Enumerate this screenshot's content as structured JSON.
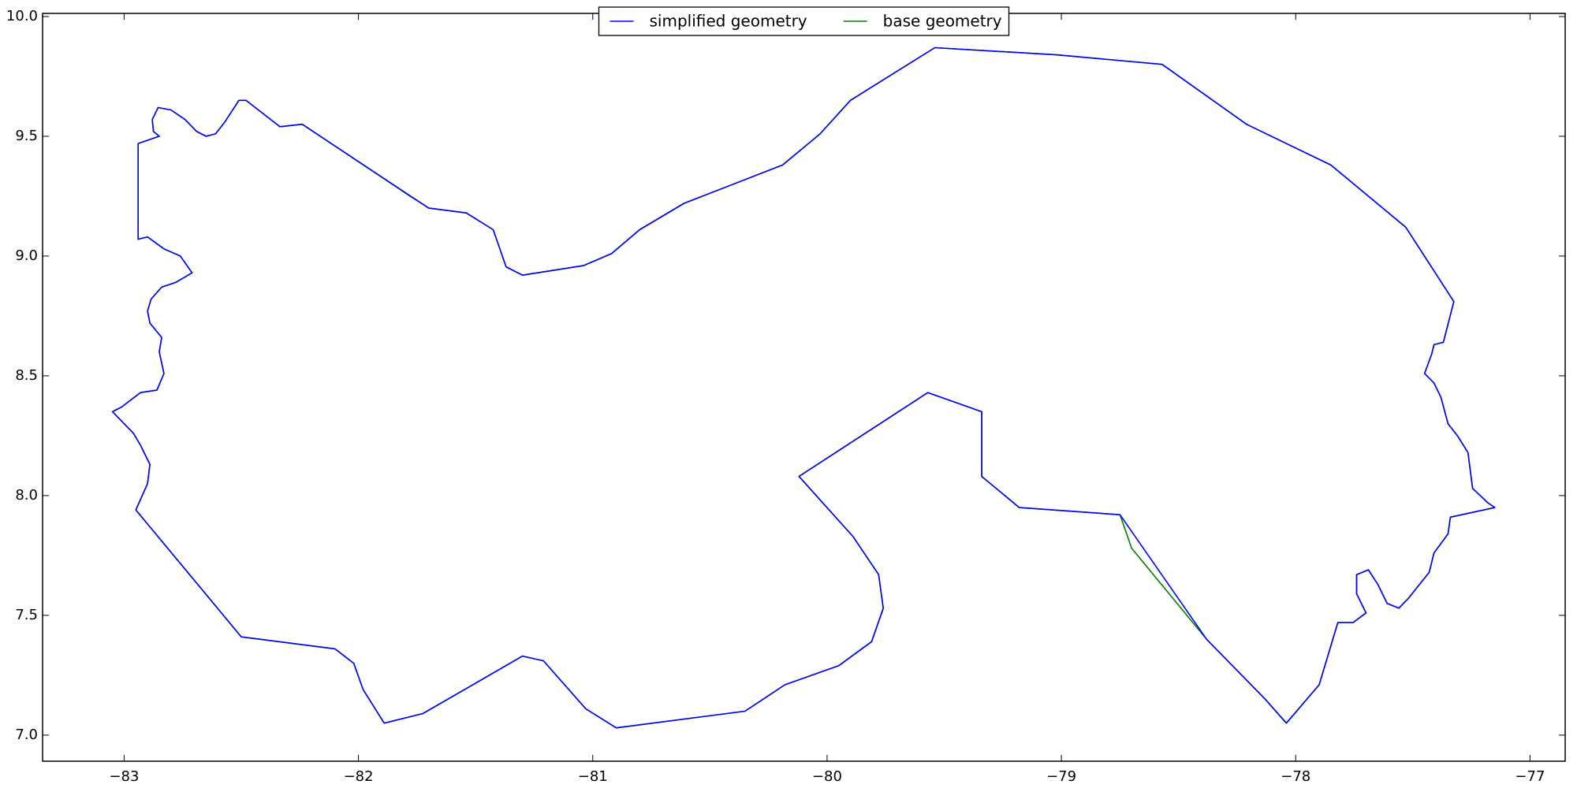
{
  "chart_data": {
    "type": "line",
    "series": [
      {
        "name": "simplified geometry",
        "color": "#0000ff",
        "x": [
          -82.94,
          -82.85,
          -82.875,
          -82.88,
          -82.855,
          -82.8,
          -82.74,
          -82.69,
          -82.65,
          -82.61,
          -82.57,
          -82.51,
          -82.48,
          -82.335,
          -82.24,
          -81.7,
          -81.54,
          -81.425,
          -81.37,
          -81.3,
          -81.04,
          -80.92,
          -80.8,
          -80.61,
          -80.19,
          -80.03,
          -79.9,
          -79.54,
          -79.02,
          -78.57,
          -78.21,
          -77.85,
          -77.53,
          -77.325,
          -77.37,
          -77.41,
          -77.42,
          -77.45,
          -77.41,
          -77.38,
          -77.35,
          -77.31,
          -77.265,
          -77.245,
          -77.18,
          -77.15,
          -77.245,
          -77.34,
          -77.35,
          -77.41,
          -77.43,
          -77.52,
          -77.56,
          -77.61,
          -77.65,
          -77.69,
          -77.74,
          -77.74,
          -77.7,
          -77.755,
          -77.82,
          -77.9,
          -78.04,
          -78.13,
          -78.38,
          -78.75,
          -79.18,
          -79.34,
          -79.34,
          -79.57,
          -80.12,
          -79.89,
          -79.78,
          -79.76,
          -79.81,
          -79.95,
          -80.18,
          -80.35,
          -80.9,
          -81.03,
          -81.21,
          -81.3,
          -81.725,
          -81.89,
          -81.98,
          -82.02,
          -82.1,
          -82.5,
          -82.95,
          -82.9,
          -82.89,
          -82.93,
          -82.96,
          -83.02,
          -83.05,
          -83.01,
          -82.97,
          -82.93,
          -82.86,
          -82.83,
          -82.85,
          -82.84,
          -82.89,
          -82.9,
          -82.885,
          -82.84,
          -82.78,
          -82.71,
          -82.76,
          -82.83,
          -82.9,
          -82.94,
          -82.94
        ],
        "values": [
          9.47,
          9.5,
          9.52,
          9.57,
          9.62,
          9.61,
          9.57,
          9.52,
          9.5,
          9.51,
          9.56,
          9.65,
          9.65,
          9.54,
          9.55,
          9.2,
          9.18,
          9.11,
          8.955,
          8.92,
          8.96,
          9.01,
          9.11,
          9.22,
          9.38,
          9.51,
          9.65,
          9.87,
          9.84,
          9.8,
          9.55,
          9.38,
          9.12,
          8.81,
          8.64,
          8.63,
          8.59,
          8.51,
          8.47,
          8.41,
          8.3,
          8.25,
          8.18,
          8.03,
          7.97,
          7.95,
          7.93,
          7.91,
          7.84,
          7.76,
          7.68,
          7.57,
          7.53,
          7.55,
          7.63,
          7.69,
          7.67,
          7.59,
          7.51,
          7.47,
          7.47,
          7.21,
          7.05,
          7.15,
          7.4,
          7.92,
          7.95,
          8.08,
          8.35,
          8.43,
          8.08,
          7.83,
          7.67,
          7.53,
          7.39,
          7.29,
          7.21,
          7.1,
          7.03,
          7.11,
          7.31,
          7.33,
          7.09,
          7.05,
          7.19,
          7.3,
          7.36,
          7.41,
          7.94,
          8.05,
          8.13,
          8.21,
          8.26,
          8.32,
          8.35,
          8.37,
          8.4,
          8.43,
          8.44,
          8.51,
          8.6,
          8.66,
          8.72,
          8.77,
          8.82,
          8.87,
          8.89,
          8.93,
          9.0,
          9.03,
          9.08,
          9.07,
          9.47
        ]
      },
      {
        "name": "base geometry",
        "color": "#008000",
        "x": [
          -82.94,
          -82.85,
          -82.875,
          -82.88,
          -82.855,
          -82.8,
          -82.74,
          -82.69,
          -82.65,
          -82.61,
          -82.57,
          -82.51,
          -82.48,
          -82.335,
          -82.24,
          -81.78,
          -81.7,
          -81.54,
          -81.425,
          -81.37,
          -81.3,
          -81.04,
          -80.92,
          -80.8,
          -80.61,
          -80.19,
          -80.03,
          -79.9,
          -79.54,
          -79.02,
          -78.57,
          -78.21,
          -77.85,
          -77.53,
          -77.325,
          -77.37,
          -77.41,
          -77.42,
          -77.45,
          -77.41,
          -77.38,
          -77.35,
          -77.31,
          -77.265,
          -77.245,
          -77.18,
          -77.15,
          -77.245,
          -77.34,
          -77.35,
          -77.41,
          -77.43,
          -77.52,
          -77.56,
          -77.61,
          -77.65,
          -77.69,
          -77.74,
          -77.74,
          -77.7,
          -77.755,
          -77.82,
          -77.9,
          -78.04,
          -78.13,
          -78.38,
          -78.7,
          -78.75,
          -79.18,
          -79.34,
          -79.34,
          -79.57,
          -80.12,
          -79.89,
          -79.78,
          -79.76,
          -79.81,
          -79.95,
          -80.18,
          -80.35,
          -80.9,
          -81.03,
          -81.21,
          -81.3,
          -81.6,
          -81.725,
          -81.89,
          -81.98,
          -82.02,
          -82.1,
          -82.5,
          -82.95,
          -82.9,
          -82.89,
          -82.93,
          -82.96,
          -83.02,
          -83.05,
          -83.01,
          -82.97,
          -82.93,
          -82.86,
          -82.83,
          -82.85,
          -82.84,
          -82.89,
          -82.9,
          -82.885,
          -82.84,
          -82.78,
          -82.71,
          -82.76,
          -82.83,
          -82.9,
          -82.94,
          -82.94
        ],
        "values": [
          9.47,
          9.5,
          9.52,
          9.57,
          9.62,
          9.61,
          9.57,
          9.52,
          9.5,
          9.51,
          9.56,
          9.65,
          9.65,
          9.54,
          9.55,
          9.25,
          9.2,
          9.18,
          9.11,
          8.955,
          8.92,
          8.96,
          9.01,
          9.11,
          9.22,
          9.38,
          9.51,
          9.65,
          9.87,
          9.84,
          9.8,
          9.55,
          9.38,
          9.12,
          8.81,
          8.64,
          8.63,
          8.59,
          8.51,
          8.47,
          8.41,
          8.3,
          8.25,
          8.18,
          8.03,
          7.97,
          7.95,
          7.93,
          7.91,
          7.84,
          7.76,
          7.68,
          7.57,
          7.53,
          7.55,
          7.63,
          7.69,
          7.67,
          7.59,
          7.51,
          7.47,
          7.47,
          7.21,
          7.05,
          7.15,
          7.4,
          7.78,
          7.92,
          7.95,
          8.08,
          8.35,
          8.43,
          8.08,
          7.83,
          7.67,
          7.53,
          7.39,
          7.29,
          7.21,
          7.1,
          7.03,
          7.11,
          7.31,
          7.33,
          7.16,
          7.09,
          7.05,
          7.19,
          7.3,
          7.36,
          7.41,
          7.94,
          8.05,
          8.13,
          8.21,
          8.26,
          8.32,
          8.35,
          8.37,
          8.4,
          8.43,
          8.44,
          8.51,
          8.6,
          8.66,
          8.72,
          8.77,
          8.82,
          8.87,
          8.89,
          8.93,
          9.0,
          9.03,
          9.08,
          9.07,
          9.47
        ]
      }
    ],
    "xlim": [
      -83.348,
      -76.85
    ],
    "ylim": [
      6.891,
      10.013
    ],
    "xticks": [
      {
        "value": -83,
        "label": "−83"
      },
      {
        "value": -82,
        "label": "−82"
      },
      {
        "value": -81,
        "label": "−81"
      },
      {
        "value": -80,
        "label": "−80"
      },
      {
        "value": -79,
        "label": "−79"
      },
      {
        "value": -78,
        "label": "−78"
      },
      {
        "value": -77,
        "label": "−77"
      }
    ],
    "yticks": [
      {
        "value": 7,
        "label": "7.0"
      },
      7.5,
      {
        "value": 8,
        "label": "8.0"
      },
      8.5,
      {
        "value": 9,
        "label": "9.0"
      },
      9.5,
      {
        "value": 10,
        "label": "10.0"
      }
    ],
    "legend": "upper center"
  }
}
